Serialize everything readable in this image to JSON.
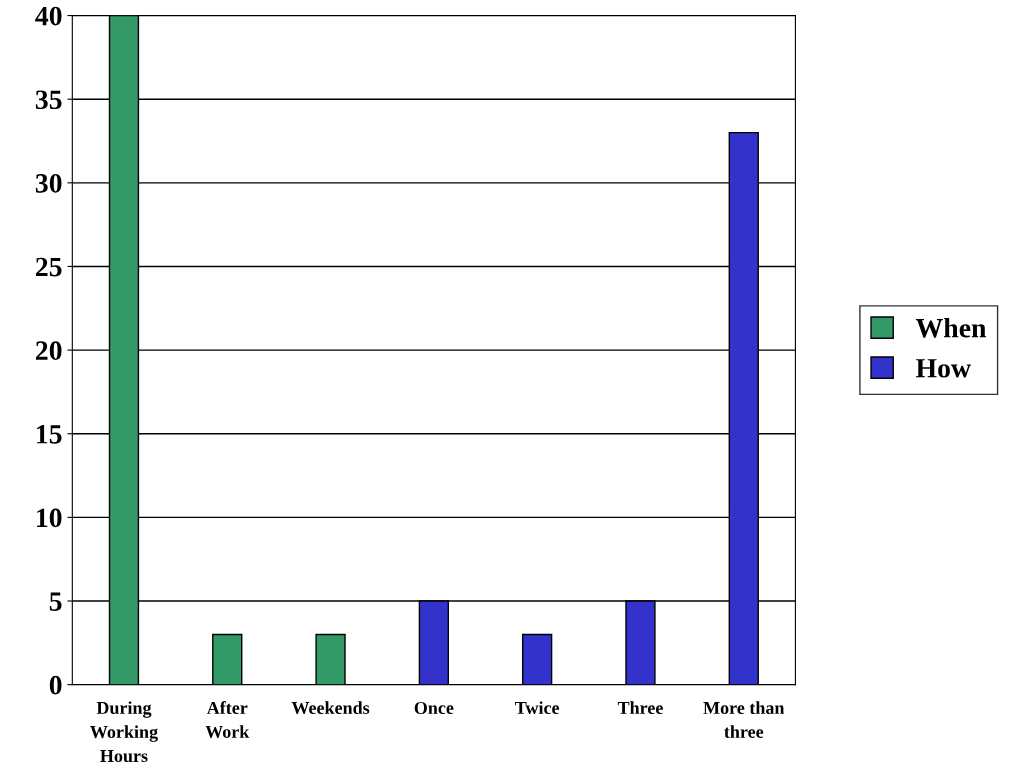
{
  "chart_data": {
    "type": "bar",
    "categories": [
      "During\nWorking\nHours",
      "After\nWork",
      "Weekends",
      "Once",
      "Twice",
      "Three",
      "More than\nthree"
    ],
    "series": [
      {
        "name": "When",
        "color": "#339966",
        "values": [
          40,
          3,
          3,
          null,
          null,
          null,
          null
        ]
      },
      {
        "name": "How",
        "color": "#3333cc",
        "values": [
          null,
          null,
          null,
          5,
          3,
          5,
          33
        ]
      }
    ],
    "ylim": [
      0,
      40
    ],
    "yticks": [
      0,
      5,
      10,
      15,
      20,
      25,
      30,
      35,
      40
    ],
    "grid": "y",
    "legend": "right"
  }
}
